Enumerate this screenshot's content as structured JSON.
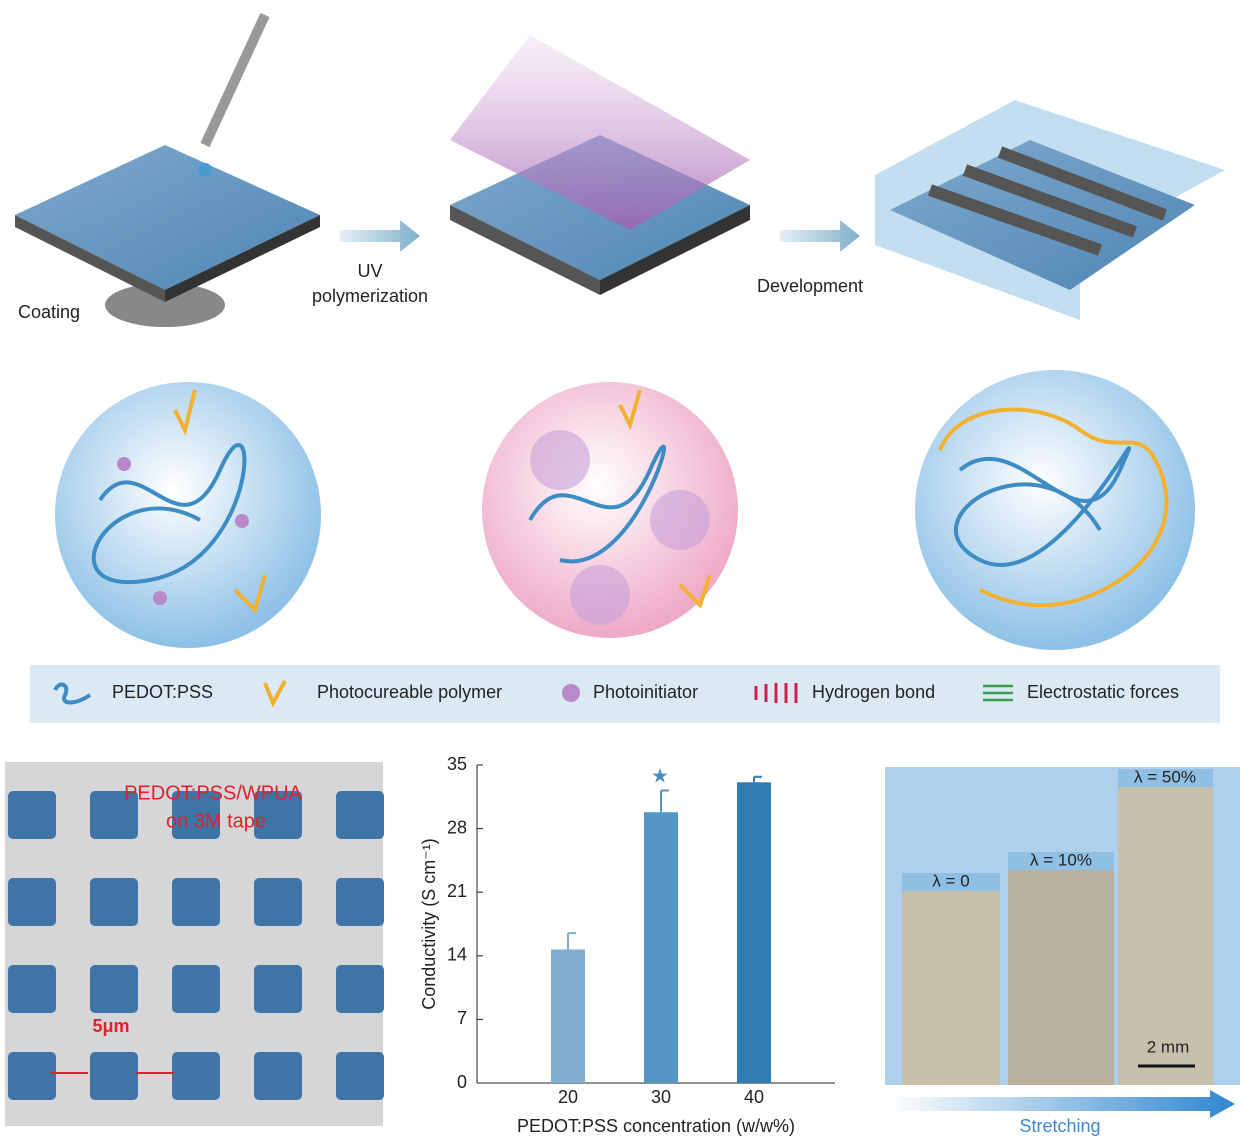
{
  "schematic": {
    "coating": "Coating",
    "uv": [
      "UV",
      "polymerization"
    ],
    "development": "Development"
  },
  "legend": [
    "PEDOT:PSS",
    "Photocureable polymer",
    "Photoinitiator",
    "Hydrogen bond",
    "Electrostatic forces"
  ],
  "micrograph": {
    "label": [
      "PEDOT:PSS/WPUA",
      "on 3M tape"
    ],
    "scale": "5μm"
  },
  "chart_data": {
    "type": "bar",
    "categories": [
      "20",
      "30",
      "40"
    ],
    "values": [
      14.7,
      29.8,
      33.1
    ],
    "errors": [
      1.8,
      2.4,
      0.6
    ],
    "colors": [
      "#7eadd0",
      "#5596c4",
      "#2f7db3"
    ],
    "ylim": [
      0,
      35
    ],
    "yticks": [
      0,
      7,
      14,
      21,
      28,
      35
    ],
    "y_label": "Conductivity (S cm⁻¹)",
    "x_label": "PEDOT:PSS concentration (w/w%)"
  },
  "stretching": {
    "labels": [
      "λ = 0",
      "λ = 10%",
      "λ = 50%"
    ],
    "scale": "2 mm",
    "arrow": "Stretching"
  }
}
